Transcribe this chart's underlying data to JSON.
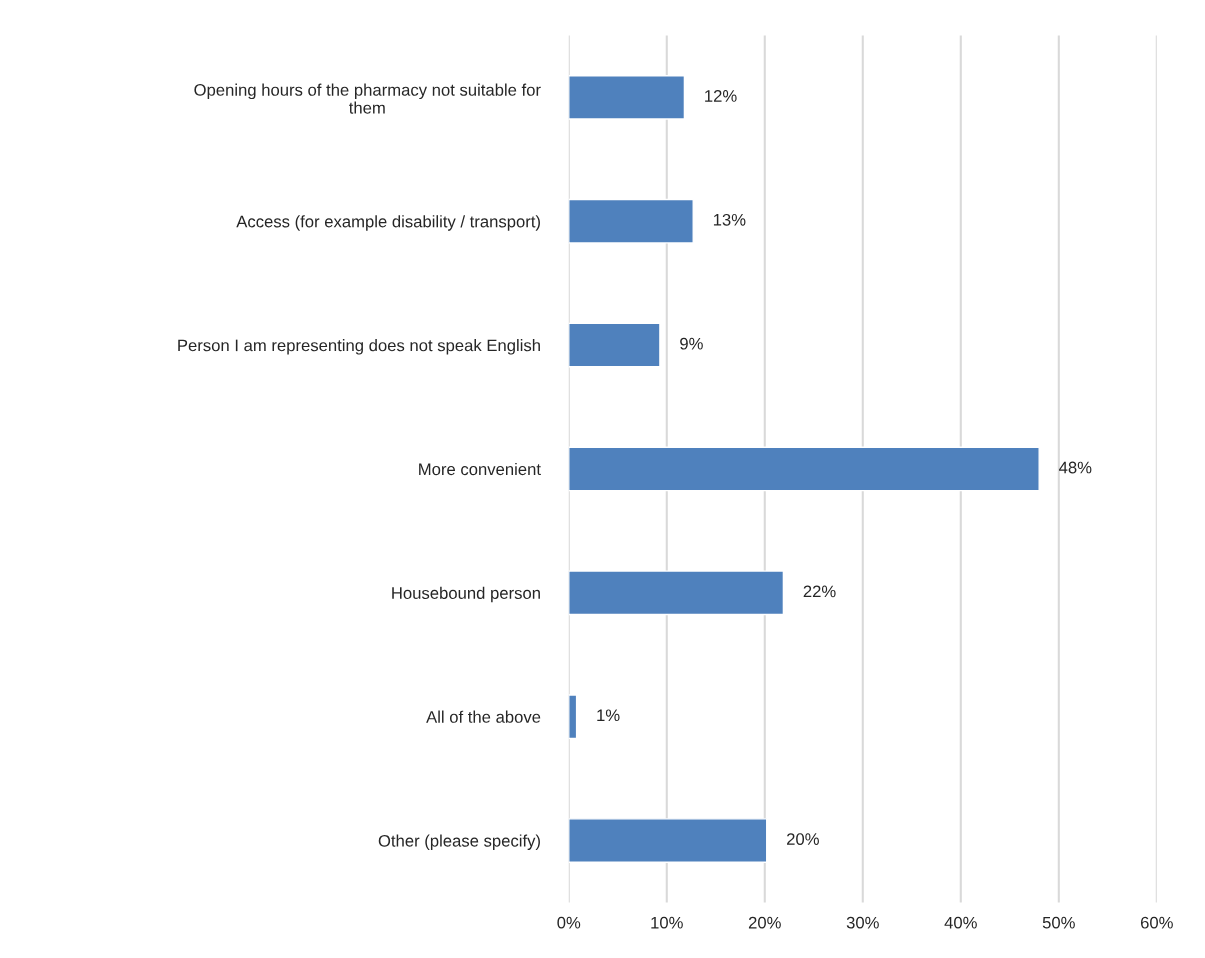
{
  "chart_data": {
    "type": "bar",
    "orientation": "horizontal",
    "categories": [
      "Opening hours of the pharmacy not suitable for\nthem",
      "Access (for example disability / transport)",
      "Person I am representing does not speak English",
      "More convenient",
      "Housebound person",
      "All of the above",
      "Other (please specify)"
    ],
    "values": [
      11.8,
      12.7,
      9.3,
      48,
      21.9,
      0.8,
      20.2
    ],
    "value_labels": [
      "12%",
      "13%",
      "9%",
      "48%",
      "22%",
      "1%",
      "20%"
    ],
    "color": "#4f81bd",
    "xlim": [
      0,
      60
    ],
    "xticks": [
      {
        "value": 0,
        "label": "0%"
      },
      {
        "value": 10,
        "label": "10%"
      },
      {
        "value": 20,
        "label": "20%"
      },
      {
        "value": 30,
        "label": "30%"
      },
      {
        "value": 40,
        "label": "40%"
      },
      {
        "value": 50,
        "label": "50%"
      },
      {
        "value": 60,
        "label": "60%"
      }
    ],
    "grid": "x",
    "legend": false
  }
}
